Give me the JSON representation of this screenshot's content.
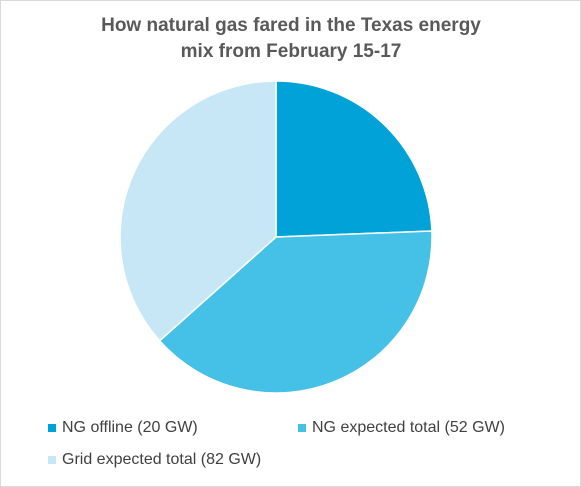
{
  "chart_data": {
    "type": "pie",
    "title_line1": "How natural gas fared in the Texas energy",
    "title_line2": "mix from February 15-17",
    "categories": [
      "NG offline (20 GW)",
      "NG expected total (52 GW)",
      "Grid expected total (82 GW)"
    ],
    "values": [
      20,
      32,
      30
    ],
    "colors": [
      "#00a2d8",
      "#45c0e6",
      "#c7e7f7"
    ],
    "start_angle_deg": 0,
    "legend_position": "bottom"
  }
}
